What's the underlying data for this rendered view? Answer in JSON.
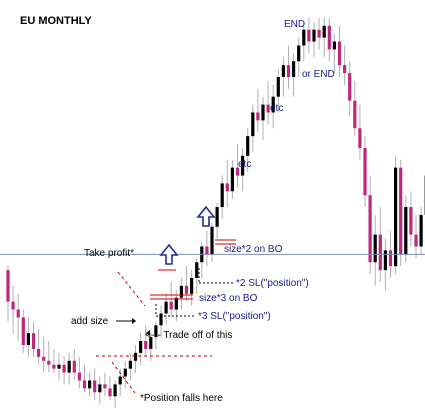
{
  "chart_data": {
    "type": "candlestick",
    "title": "EU MONTHLY",
    "grid": false,
    "colors": {
      "bull": "#000000",
      "bear": "#c0267f",
      "wick": "#b0b0b0",
      "hline": "#7b8fb0",
      "red_dashed": "#cc0000",
      "red_level": "#cc0000",
      "blue_text": "#1a1a8c",
      "arrow": "#1f2f8f"
    },
    "candles": [
      {
        "o": 0.96,
        "h": 0.97,
        "l": 0.83,
        "c": 0.88
      },
      {
        "o": 0.88,
        "h": 0.92,
        "l": 0.8,
        "c": 0.86
      },
      {
        "o": 0.86,
        "h": 0.9,
        "l": 0.78,
        "c": 0.84
      },
      {
        "o": 0.84,
        "h": 0.86,
        "l": 0.75,
        "c": 0.77
      },
      {
        "o": 0.77,
        "h": 0.84,
        "l": 0.74,
        "c": 0.8
      },
      {
        "o": 0.8,
        "h": 0.83,
        "l": 0.74,
        "c": 0.76
      },
      {
        "o": 0.76,
        "h": 0.81,
        "l": 0.72,
        "c": 0.74
      },
      {
        "o": 0.74,
        "h": 0.79,
        "l": 0.7,
        "c": 0.73
      },
      {
        "o": 0.73,
        "h": 0.78,
        "l": 0.7,
        "c": 0.72
      },
      {
        "o": 0.72,
        "h": 0.76,
        "l": 0.7,
        "c": 0.71
      },
      {
        "o": 0.71,
        "h": 0.75,
        "l": 0.68,
        "c": 0.72
      },
      {
        "o": 0.72,
        "h": 0.74,
        "l": 0.67,
        "c": 0.7
      },
      {
        "o": 0.7,
        "h": 0.75,
        "l": 0.67,
        "c": 0.73
      },
      {
        "o": 0.73,
        "h": 0.76,
        "l": 0.68,
        "c": 0.7
      },
      {
        "o": 0.7,
        "h": 0.74,
        "l": 0.66,
        "c": 0.68
      },
      {
        "o": 0.68,
        "h": 0.72,
        "l": 0.65,
        "c": 0.66
      },
      {
        "o": 0.66,
        "h": 0.7,
        "l": 0.64,
        "c": 0.68
      },
      {
        "o": 0.68,
        "h": 0.71,
        "l": 0.63,
        "c": 0.65
      },
      {
        "o": 0.65,
        "h": 0.69,
        "l": 0.62,
        "c": 0.67
      },
      {
        "o": 0.67,
        "h": 0.7,
        "l": 0.64,
        "c": 0.66
      },
      {
        "o": 0.66,
        "h": 0.69,
        "l": 0.63,
        "c": 0.64
      },
      {
        "o": 0.64,
        "h": 0.68,
        "l": 0.61,
        "c": 0.67
      },
      {
        "o": 0.67,
        "h": 0.71,
        "l": 0.64,
        "c": 0.69
      },
      {
        "o": 0.69,
        "h": 0.73,
        "l": 0.66,
        "c": 0.71
      },
      {
        "o": 0.71,
        "h": 0.75,
        "l": 0.68,
        "c": 0.73
      },
      {
        "o": 0.73,
        "h": 0.77,
        "l": 0.7,
        "c": 0.75
      },
      {
        "o": 0.75,
        "h": 0.8,
        "l": 0.72,
        "c": 0.78
      },
      {
        "o": 0.78,
        "h": 0.82,
        "l": 0.74,
        "c": 0.76
      },
      {
        "o": 0.76,
        "h": 0.8,
        "l": 0.73,
        "c": 0.79
      },
      {
        "o": 0.79,
        "h": 0.83,
        "l": 0.76,
        "c": 0.82
      },
      {
        "o": 0.82,
        "h": 0.87,
        "l": 0.79,
        "c": 0.85
      },
      {
        "o": 0.85,
        "h": 0.9,
        "l": 0.82,
        "c": 0.88
      },
      {
        "o": 0.88,
        "h": 0.93,
        "l": 0.84,
        "c": 0.86
      },
      {
        "o": 0.86,
        "h": 0.91,
        "l": 0.83,
        "c": 0.89
      },
      {
        "o": 0.89,
        "h": 0.94,
        "l": 0.86,
        "c": 0.92
      },
      {
        "o": 0.92,
        "h": 0.97,
        "l": 0.88,
        "c": 0.9
      },
      {
        "o": 0.9,
        "h": 0.96,
        "l": 0.87,
        "c": 0.94
      },
      {
        "o": 0.94,
        "h": 0.99,
        "l": 0.9,
        "c": 0.98
      },
      {
        "o": 0.98,
        "h": 1.03,
        "l": 0.94,
        "c": 1.02
      },
      {
        "o": 1.02,
        "h": 1.06,
        "l": 0.97,
        "c": 1.0
      },
      {
        "o": 1.0,
        "h": 1.08,
        "l": 0.98,
        "c": 1.07
      },
      {
        "o": 1.07,
        "h": 1.13,
        "l": 1.04,
        "c": 1.12
      },
      {
        "o": 1.12,
        "h": 1.2,
        "l": 1.09,
        "c": 1.18
      },
      {
        "o": 1.18,
        "h": 1.24,
        "l": 1.12,
        "c": 1.16
      },
      {
        "o": 1.16,
        "h": 1.24,
        "l": 1.14,
        "c": 1.22
      },
      {
        "o": 1.22,
        "h": 1.28,
        "l": 1.17,
        "c": 1.2
      },
      {
        "o": 1.2,
        "h": 1.27,
        "l": 1.16,
        "c": 1.25
      },
      {
        "o": 1.25,
        "h": 1.32,
        "l": 1.21,
        "c": 1.3
      },
      {
        "o": 1.3,
        "h": 1.38,
        "l": 1.26,
        "c": 1.36
      },
      {
        "o": 1.36,
        "h": 1.42,
        "l": 1.31,
        "c": 1.34
      },
      {
        "o": 1.34,
        "h": 1.4,
        "l": 1.29,
        "c": 1.38
      },
      {
        "o": 1.38,
        "h": 1.44,
        "l": 1.33,
        "c": 1.36
      },
      {
        "o": 1.36,
        "h": 1.43,
        "l": 1.32,
        "c": 1.4
      },
      {
        "o": 1.4,
        "h": 1.47,
        "l": 1.36,
        "c": 1.45
      },
      {
        "o": 1.45,
        "h": 1.5,
        "l": 1.4,
        "c": 1.48
      },
      {
        "o": 1.48,
        "h": 1.53,
        "l": 1.42,
        "c": 1.45
      },
      {
        "o": 1.45,
        "h": 1.51,
        "l": 1.4,
        "c": 1.49
      },
      {
        "o": 1.49,
        "h": 1.55,
        "l": 1.45,
        "c": 1.53
      },
      {
        "o": 1.53,
        "h": 1.59,
        "l": 1.49,
        "c": 1.57
      },
      {
        "o": 1.57,
        "h": 1.6,
        "l": 1.51,
        "c": 1.54
      },
      {
        "o": 1.54,
        "h": 1.59,
        "l": 1.5,
        "c": 1.57
      },
      {
        "o": 1.57,
        "h": 1.6,
        "l": 1.52,
        "c": 1.55
      },
      {
        "o": 1.55,
        "h": 1.6,
        "l": 1.5,
        "c": 1.58
      },
      {
        "o": 1.58,
        "h": 1.6,
        "l": 1.49,
        "c": 1.52
      },
      {
        "o": 1.52,
        "h": 1.56,
        "l": 1.46,
        "c": 1.54
      },
      {
        "o": 1.54,
        "h": 1.58,
        "l": 1.45,
        "c": 1.48
      },
      {
        "o": 1.48,
        "h": 1.53,
        "l": 1.43,
        "c": 1.46
      },
      {
        "o": 1.46,
        "h": 1.49,
        "l": 1.35,
        "c": 1.39
      },
      {
        "o": 1.39,
        "h": 1.44,
        "l": 1.3,
        "c": 1.32
      },
      {
        "o": 1.32,
        "h": 1.38,
        "l": 1.24,
        "c": 1.27
      },
      {
        "o": 1.27,
        "h": 1.3,
        "l": 1.12,
        "c": 1.15
      },
      {
        "o": 1.15,
        "h": 1.2,
        "l": 0.95,
        "c": 0.98
      },
      {
        "o": 0.98,
        "h": 1.1,
        "l": 0.92,
        "c": 1.05
      },
      {
        "o": 1.05,
        "h": 1.12,
        "l": 0.93,
        "c": 0.96
      },
      {
        "o": 0.96,
        "h": 1.04,
        "l": 0.91,
        "c": 1.01
      },
      {
        "o": 1.01,
        "h": 1.06,
        "l": 0.94,
        "c": 0.97
      },
      {
        "o": 0.97,
        "h": 1.25,
        "l": 0.95,
        "c": 1.22
      },
      {
        "o": 1.22,
        "h": 1.24,
        "l": 0.97,
        "c": 1.0
      },
      {
        "o": 1.0,
        "h": 1.15,
        "l": 0.98,
        "c": 1.12
      },
      {
        "o": 1.12,
        "h": 1.16,
        "l": 1.02,
        "c": 1.05
      },
      {
        "o": 1.05,
        "h": 1.1,
        "l": 0.99,
        "c": 1.02
      },
      {
        "o": 1.02,
        "h": 1.12,
        "l": 1.0,
        "c": 1.1
      },
      {
        "o": 1.1,
        "h": 1.22,
        "l": 1.05,
        "c": 1.2
      },
      {
        "o": 1.2,
        "h": 1.29,
        "l": 1.14,
        "c": 1.24
      },
      {
        "o": 1.24,
        "h": 1.27,
        "l": 1.19,
        "c": 1.22
      }
    ],
    "price_range": [
      0.6,
      1.62
    ],
    "horizontal_line": 1.0,
    "annotations": [
      {
        "id": "end-top",
        "text": "END"
      },
      {
        "id": "or-end",
        "text": "or END"
      },
      {
        "id": "etc-upper",
        "text": "etc"
      },
      {
        "id": "etc-lower",
        "text": "etc"
      },
      {
        "id": "size-2",
        "text": "size*2 on BO"
      },
      {
        "id": "take-profit",
        "text": "Take profit*"
      },
      {
        "id": "sl-2",
        "text": "*2 SL(\"position\")"
      },
      {
        "id": "size-3",
        "text": "size*3 on BO"
      },
      {
        "id": "add-size",
        "text": "add size"
      },
      {
        "id": "sl-3",
        "text": "*3 SL(\"position\")"
      },
      {
        "id": "trade-off",
        "text": "<--- Trade off of this"
      },
      {
        "id": "position-falls",
        "text": "*Position falls here"
      }
    ]
  }
}
